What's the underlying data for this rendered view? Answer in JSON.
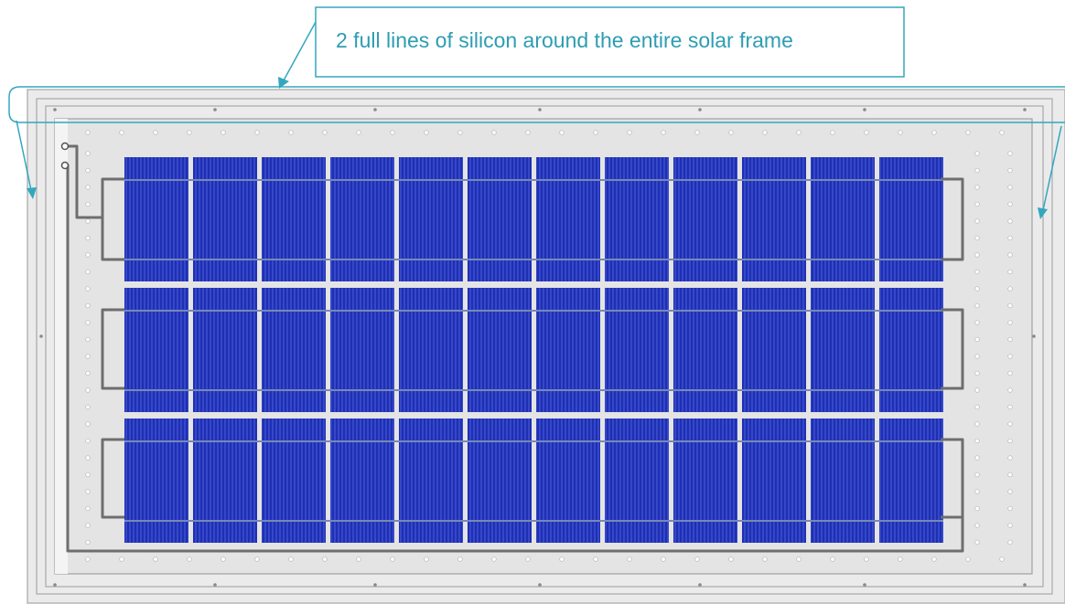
{
  "callout": {
    "text": "2 full lines of silicon around the entire solar frame"
  },
  "panel": {
    "cell_rows": 3,
    "cell_columns": 12
  },
  "colors": {
    "cell_blue": "#1f2fb4",
    "cell_line": "#5a78e8",
    "callout_teal": "#33a7bd",
    "frame_fill": "#e8e8e8",
    "frame_outline": "#9a9a9a",
    "wire": "#6f6f6f"
  }
}
